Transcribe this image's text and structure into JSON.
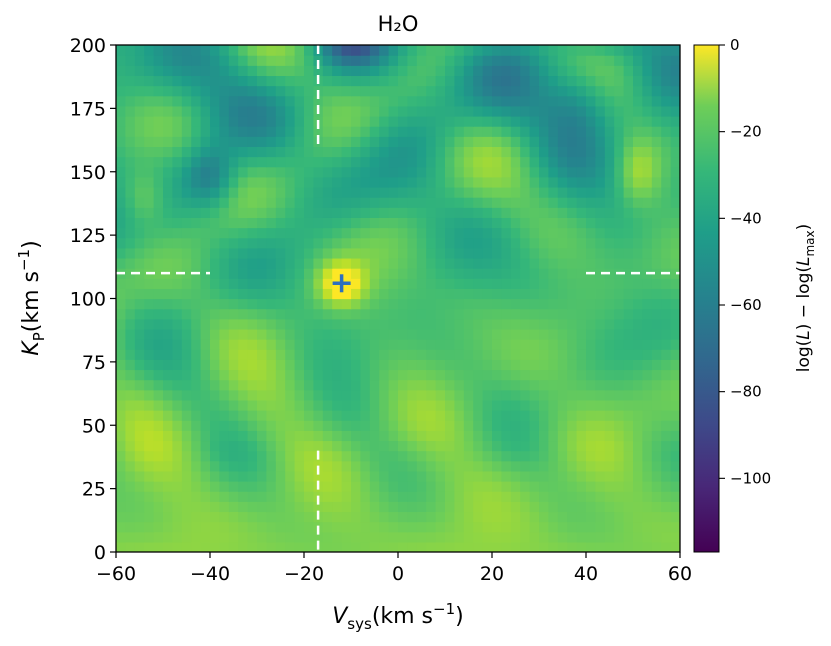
{
  "chart_data": {
    "type": "heatmap",
    "title": "H₂O",
    "xlabel": "V_sys(km s⁻¹)",
    "ylabel": "K_P(km s⁻¹)",
    "xlim": [
      -60,
      60
    ],
    "ylim": [
      0,
      200
    ],
    "xticks": [
      -60,
      -40,
      -20,
      0,
      20,
      40,
      60
    ],
    "yticks": [
      0,
      25,
      50,
      75,
      100,
      125,
      150,
      175,
      200
    ],
    "colorbar": {
      "label": "log(L) − log(L_max)",
      "range": [
        -117,
        0
      ],
      "ticks": [
        0,
        -20,
        -40,
        -60,
        -80,
        -100
      ],
      "colormap": "viridis"
    },
    "marker": {
      "shape": "plus",
      "x": -12,
      "y": 106,
      "color": "#2e6fbf"
    },
    "reference_lines": {
      "color": "#ffffff",
      "style": "dashed",
      "vertical_x": -17,
      "horizontal_y": 110
    },
    "grid": false,
    "peak": {
      "x": -12,
      "y": 106,
      "value": 0
    }
  }
}
